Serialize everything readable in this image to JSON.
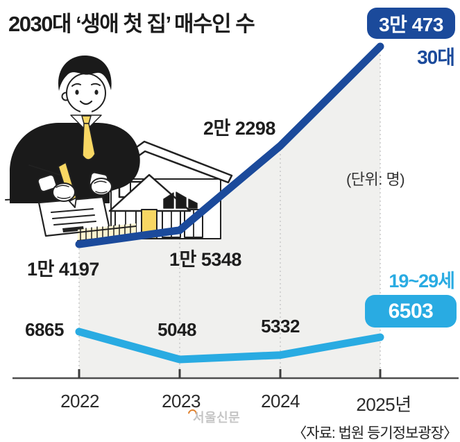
{
  "page": {
    "title": "2030대 ‘생애 첫 집’ 매수인 수",
    "unit_note": "(단위: 명)",
    "source": "〈자료: 법원 등기정보광장〉",
    "watermark": "서울신문"
  },
  "colors": {
    "series_30s_blue": "#1b4a9b",
    "series_20s_blue": "#29abe2",
    "area_fill_gray": "#f0f0ee",
    "axis_gray": "#4d4d4d",
    "guide_dot_gray": "#c6c6c6",
    "badge_text": "#ffffff",
    "accent_yellow": "#f8d763"
  },
  "chart_data": {
    "type": "line",
    "categories": [
      "2022",
      "2023",
      "2024",
      "2025년"
    ],
    "series": [
      {
        "name": "30대",
        "color": "#1b4a9b",
        "values": [
          14197,
          15348,
          22298,
          30473
        ],
        "point_labels": [
          "1만 4197",
          "1만 5348",
          "2만 2298",
          "3만 473"
        ],
        "last_value_style": "badge"
      },
      {
        "name": "19~29세",
        "color": "#29abe2",
        "values": [
          6865,
          5048,
          5332,
          6503
        ],
        "point_labels": [
          "6865",
          "5048",
          "5332",
          "6503"
        ],
        "last_value_style": "badge"
      }
    ],
    "unit": "명",
    "grid": "dotted-vertical-guides",
    "area_fill_under_series": "30대",
    "legend_position": "inline-right-labels",
    "x_axis": {
      "baseline": true,
      "ticks": true
    }
  }
}
